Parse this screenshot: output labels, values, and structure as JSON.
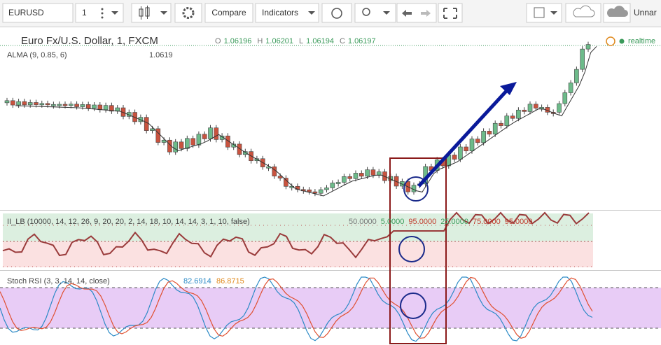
{
  "toolbar": {
    "symbol": "EURUSD",
    "interval": "1",
    "compare": "Compare",
    "indicators": "Indicators",
    "tab": "Unnar"
  },
  "main_pane": {
    "title": "Euro Fx/U.S. Dollar, 1, FXCM",
    "ohlc": [
      {
        "label": "O",
        "value": "1.06196"
      },
      {
        "label": "H",
        "value": "1.06201"
      },
      {
        "label": "L",
        "value": "1.06194"
      },
      {
        "label": "C",
        "value": "1.06197"
      }
    ],
    "status": "realtime",
    "indicator": {
      "name": "ALMA (9, 0.85, 6)",
      "value": "1.0619"
    }
  },
  "lb_pane": {
    "name": "II_LB (10000, 14, 12, 26, 9, 20, 20, 2, 14, 18, 10, 14, 14, 3, 1, 10, false)",
    "values": [
      "50.0000",
      "5.0000",
      "95.0000",
      "25.0000",
      "75.0000",
      "95.0000"
    ]
  },
  "stoch_pane": {
    "name": "Stoch RSI (3, 3, 14, 14, close)",
    "values": [
      "82.6914",
      "86.8715"
    ]
  }
}
